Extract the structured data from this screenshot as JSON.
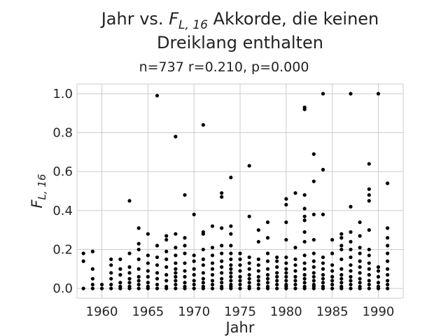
{
  "chart_data": {
    "type": "scatter",
    "title_line1_prefix": "Jahr vs. ",
    "title_math_main": "F",
    "title_math_sub": "L, 16",
    "title_line1_suffix": " Akkorde, die keinen",
    "title_line2": "Dreiklang enthalten",
    "subtitle": "n=737 r=0.210, p=0.000",
    "xlabel": "Jahr",
    "ylabel_main": "F",
    "ylabel_sub": "L, 16",
    "xlim": [
      1957.3,
      1992.7
    ],
    "ylim": [
      -0.05,
      1.05
    ],
    "xticks": [
      1960,
      1965,
      1970,
      1975,
      1980,
      1985,
      1990
    ],
    "yticks": [
      0.0,
      0.2,
      0.4,
      0.6,
      0.8,
      1.0
    ],
    "ytick_labels": [
      "0.0",
      "0.2",
      "0.4",
      "0.6",
      "0.8",
      "1.0"
    ],
    "grid": true,
    "point_color": "#000000",
    "points": [
      [
        1958,
        0.0
      ],
      [
        1958,
        0.14
      ],
      [
        1958,
        0.18
      ],
      [
        1959,
        0.0
      ],
      [
        1959,
        0.02
      ],
      [
        1959,
        0.05
      ],
      [
        1959,
        0.1
      ],
      [
        1959,
        0.19
      ],
      [
        1960,
        0.0
      ],
      [
        1960,
        0.02
      ],
      [
        1961,
        0.0
      ],
      [
        1961,
        0.02
      ],
      [
        1961,
        0.05
      ],
      [
        1961,
        0.08
      ],
      [
        1961,
        0.12
      ],
      [
        1961,
        0.15
      ],
      [
        1962,
        0.0
      ],
      [
        1962,
        0.01
      ],
      [
        1962,
        0.03
      ],
      [
        1962,
        0.07
      ],
      [
        1962,
        0.1
      ],
      [
        1962,
        0.15
      ],
      [
        1963,
        0.0
      ],
      [
        1963,
        0.01
      ],
      [
        1963,
        0.03
      ],
      [
        1963,
        0.05
      ],
      [
        1963,
        0.08
      ],
      [
        1963,
        0.11
      ],
      [
        1963,
        0.18
      ],
      [
        1963,
        0.45
      ],
      [
        1964,
        0.0
      ],
      [
        1964,
        0.02
      ],
      [
        1964,
        0.04
      ],
      [
        1964,
        0.06
      ],
      [
        1964,
        0.1
      ],
      [
        1964,
        0.15
      ],
      [
        1964,
        0.2
      ],
      [
        1964,
        0.23
      ],
      [
        1964,
        0.31
      ],
      [
        1965,
        0.0
      ],
      [
        1965,
        0.01
      ],
      [
        1965,
        0.03
      ],
      [
        1965,
        0.06
      ],
      [
        1965,
        0.09
      ],
      [
        1965,
        0.13
      ],
      [
        1965,
        0.17
      ],
      [
        1965,
        0.28
      ],
      [
        1966,
        0.0
      ],
      [
        1966,
        0.02
      ],
      [
        1966,
        0.05
      ],
      [
        1966,
        0.08
      ],
      [
        1966,
        0.12
      ],
      [
        1966,
        0.16
      ],
      [
        1966,
        0.22
      ],
      [
        1966,
        0.99
      ],
      [
        1967,
        0.0
      ],
      [
        1967,
        0.01
      ],
      [
        1967,
        0.04
      ],
      [
        1967,
        0.07
      ],
      [
        1967,
        0.11
      ],
      [
        1967,
        0.15
      ],
      [
        1967,
        0.19
      ],
      [
        1967,
        0.25
      ],
      [
        1967,
        0.27
      ],
      [
        1968,
        0.0
      ],
      [
        1968,
        0.02
      ],
      [
        1968,
        0.04
      ],
      [
        1968,
        0.06
      ],
      [
        1968,
        0.08
      ],
      [
        1968,
        0.1
      ],
      [
        1968,
        0.13
      ],
      [
        1968,
        0.17
      ],
      [
        1968,
        0.21
      ],
      [
        1968,
        0.28
      ],
      [
        1968,
        0.78
      ],
      [
        1969,
        0.0
      ],
      [
        1969,
        0.01
      ],
      [
        1969,
        0.03
      ],
      [
        1969,
        0.06
      ],
      [
        1969,
        0.09
      ],
      [
        1969,
        0.13
      ],
      [
        1969,
        0.18
      ],
      [
        1969,
        0.22
      ],
      [
        1969,
        0.26
      ],
      [
        1969,
        0.48
      ],
      [
        1970,
        0.0
      ],
      [
        1970,
        0.02
      ],
      [
        1970,
        0.04
      ],
      [
        1970,
        0.07
      ],
      [
        1970,
        0.1
      ],
      [
        1970,
        0.14
      ],
      [
        1970,
        0.17
      ],
      [
        1970,
        0.38
      ],
      [
        1971,
        0.0
      ],
      [
        1971,
        0.01
      ],
      [
        1971,
        0.03
      ],
      [
        1971,
        0.05
      ],
      [
        1971,
        0.08
      ],
      [
        1971,
        0.12
      ],
      [
        1971,
        0.15
      ],
      [
        1971,
        0.2
      ],
      [
        1971,
        0.28
      ],
      [
        1971,
        0.29
      ],
      [
        1971,
        0.84
      ],
      [
        1972,
        0.0
      ],
      [
        1972,
        0.02
      ],
      [
        1972,
        0.04
      ],
      [
        1972,
        0.07
      ],
      [
        1972,
        0.1
      ],
      [
        1972,
        0.13
      ],
      [
        1972,
        0.17
      ],
      [
        1972,
        0.21
      ],
      [
        1972,
        0.32
      ],
      [
        1973,
        0.0
      ],
      [
        1973,
        0.01
      ],
      [
        1973,
        0.03
      ],
      [
        1973,
        0.05
      ],
      [
        1973,
        0.08
      ],
      [
        1973,
        0.11
      ],
      [
        1973,
        0.14
      ],
      [
        1973,
        0.18
      ],
      [
        1973,
        0.22
      ],
      [
        1973,
        0.31
      ],
      [
        1973,
        0.47
      ],
      [
        1973,
        0.49
      ],
      [
        1974,
        0.0
      ],
      [
        1974,
        0.01
      ],
      [
        1974,
        0.02
      ],
      [
        1974,
        0.04
      ],
      [
        1974,
        0.06
      ],
      [
        1974,
        0.08
      ],
      [
        1974,
        0.1
      ],
      [
        1974,
        0.12
      ],
      [
        1974,
        0.15
      ],
      [
        1974,
        0.18
      ],
      [
        1974,
        0.22
      ],
      [
        1974,
        0.28
      ],
      [
        1974,
        0.32
      ],
      [
        1974,
        0.57
      ],
      [
        1975,
        0.0
      ],
      [
        1975,
        0.02
      ],
      [
        1975,
        0.04
      ],
      [
        1975,
        0.06
      ],
      [
        1975,
        0.09
      ],
      [
        1975,
        0.12
      ],
      [
        1975,
        0.15
      ],
      [
        1975,
        0.18
      ],
      [
        1976,
        0.0
      ],
      [
        1976,
        0.01
      ],
      [
        1976,
        0.03
      ],
      [
        1976,
        0.05
      ],
      [
        1976,
        0.07
      ],
      [
        1976,
        0.1
      ],
      [
        1976,
        0.13
      ],
      [
        1976,
        0.16
      ],
      [
        1976,
        0.37
      ],
      [
        1976,
        0.63
      ],
      [
        1977,
        0.0
      ],
      [
        1977,
        0.02
      ],
      [
        1977,
        0.04
      ],
      [
        1977,
        0.06
      ],
      [
        1977,
        0.09
      ],
      [
        1977,
        0.12
      ],
      [
        1977,
        0.15
      ],
      [
        1977,
        0.24
      ],
      [
        1977,
        0.3
      ],
      [
        1978,
        0.0
      ],
      [
        1978,
        0.01
      ],
      [
        1978,
        0.03
      ],
      [
        1978,
        0.05
      ],
      [
        1978,
        0.07
      ],
      [
        1978,
        0.1
      ],
      [
        1978,
        0.14
      ],
      [
        1978,
        0.18
      ],
      [
        1978,
        0.26
      ],
      [
        1978,
        0.34
      ],
      [
        1979,
        0.0
      ],
      [
        1979,
        0.02
      ],
      [
        1979,
        0.04
      ],
      [
        1979,
        0.06
      ],
      [
        1979,
        0.08
      ],
      [
        1979,
        0.11
      ],
      [
        1979,
        0.14
      ],
      [
        1979,
        0.16
      ],
      [
        1980,
        0.0
      ],
      [
        1980,
        0.01
      ],
      [
        1980,
        0.02
      ],
      [
        1980,
        0.04
      ],
      [
        1980,
        0.06
      ],
      [
        1980,
        0.08
      ],
      [
        1980,
        0.1
      ],
      [
        1980,
        0.13
      ],
      [
        1980,
        0.16
      ],
      [
        1980,
        0.25
      ],
      [
        1980,
        0.34
      ],
      [
        1980,
        0.43
      ],
      [
        1980,
        0.46
      ],
      [
        1981,
        0.0
      ],
      [
        1981,
        0.02
      ],
      [
        1981,
        0.04
      ],
      [
        1981,
        0.06
      ],
      [
        1981,
        0.09
      ],
      [
        1981,
        0.12
      ],
      [
        1981,
        0.15
      ],
      [
        1981,
        0.21
      ],
      [
        1981,
        0.49
      ],
      [
        1982,
        0.0
      ],
      [
        1982,
        0.01
      ],
      [
        1982,
        0.03
      ],
      [
        1982,
        0.05
      ],
      [
        1982,
        0.07
      ],
      [
        1982,
        0.1
      ],
      [
        1982,
        0.13
      ],
      [
        1982,
        0.17
      ],
      [
        1982,
        0.24
      ],
      [
        1982,
        0.29
      ],
      [
        1982,
        0.35
      ],
      [
        1982,
        0.37
      ],
      [
        1982,
        0.41
      ],
      [
        1982,
        0.48
      ],
      [
        1982,
        0.92
      ],
      [
        1982,
        0.93
      ],
      [
        1983,
        0.0
      ],
      [
        1983,
        0.01
      ],
      [
        1983,
        0.02
      ],
      [
        1983,
        0.04
      ],
      [
        1983,
        0.06
      ],
      [
        1983,
        0.08
      ],
      [
        1983,
        0.11
      ],
      [
        1983,
        0.14
      ],
      [
        1983,
        0.18
      ],
      [
        1983,
        0.25
      ],
      [
        1983,
        0.38
      ],
      [
        1983,
        0.55
      ],
      [
        1983,
        0.69
      ],
      [
        1984,
        0.0
      ],
      [
        1984,
        0.01
      ],
      [
        1984,
        0.03
      ],
      [
        1984,
        0.05
      ],
      [
        1984,
        0.07
      ],
      [
        1984,
        0.1
      ],
      [
        1984,
        0.13
      ],
      [
        1984,
        0.16
      ],
      [
        1984,
        0.38
      ],
      [
        1984,
        0.61
      ],
      [
        1984,
        1.0
      ],
      [
        1985,
        0.0
      ],
      [
        1985,
        0.02
      ],
      [
        1985,
        0.04
      ],
      [
        1985,
        0.06
      ],
      [
        1985,
        0.09
      ],
      [
        1985,
        0.12
      ],
      [
        1985,
        0.18
      ],
      [
        1985,
        0.25
      ],
      [
        1986,
        0.0
      ],
      [
        1986,
        0.01
      ],
      [
        1986,
        0.03
      ],
      [
        1986,
        0.05
      ],
      [
        1986,
        0.07
      ],
      [
        1986,
        0.1
      ],
      [
        1986,
        0.15
      ],
      [
        1986,
        0.2
      ],
      [
        1986,
        0.22
      ],
      [
        1986,
        0.26
      ],
      [
        1986,
        0.28
      ],
      [
        1987,
        0.0
      ],
      [
        1987,
        0.02
      ],
      [
        1987,
        0.04
      ],
      [
        1987,
        0.06
      ],
      [
        1987,
        0.09
      ],
      [
        1987,
        0.12
      ],
      [
        1987,
        0.16
      ],
      [
        1987,
        0.2
      ],
      [
        1987,
        0.24
      ],
      [
        1987,
        0.29
      ],
      [
        1987,
        0.42
      ],
      [
        1987,
        1.0
      ],
      [
        1988,
        0.0
      ],
      [
        1988,
        0.01
      ],
      [
        1988,
        0.03
      ],
      [
        1988,
        0.05
      ],
      [
        1988,
        0.08
      ],
      [
        1988,
        0.11
      ],
      [
        1988,
        0.14
      ],
      [
        1988,
        0.18
      ],
      [
        1988,
        0.21
      ],
      [
        1988,
        0.27
      ],
      [
        1988,
        0.34
      ],
      [
        1989,
        0.0
      ],
      [
        1989,
        0.02
      ],
      [
        1989,
        0.04
      ],
      [
        1989,
        0.07
      ],
      [
        1989,
        0.1
      ],
      [
        1989,
        0.13
      ],
      [
        1989,
        0.17
      ],
      [
        1989,
        0.2
      ],
      [
        1989,
        0.3
      ],
      [
        1989,
        0.45
      ],
      [
        1989,
        0.48
      ],
      [
        1989,
        0.51
      ],
      [
        1989,
        0.64
      ],
      [
        1990,
        0.0
      ],
      [
        1990,
        0.01
      ],
      [
        1990,
        0.03
      ],
      [
        1990,
        0.06
      ],
      [
        1990,
        0.09
      ],
      [
        1990,
        0.11
      ],
      [
        1990,
        1.0
      ],
      [
        1991,
        0.0
      ],
      [
        1991,
        0.02
      ],
      [
        1991,
        0.04
      ],
      [
        1991,
        0.07
      ],
      [
        1991,
        0.1
      ],
      [
        1991,
        0.14
      ],
      [
        1991,
        0.18
      ],
      [
        1991,
        0.22
      ],
      [
        1991,
        0.26
      ],
      [
        1991,
        0.31
      ],
      [
        1991,
        0.54
      ]
    ]
  }
}
